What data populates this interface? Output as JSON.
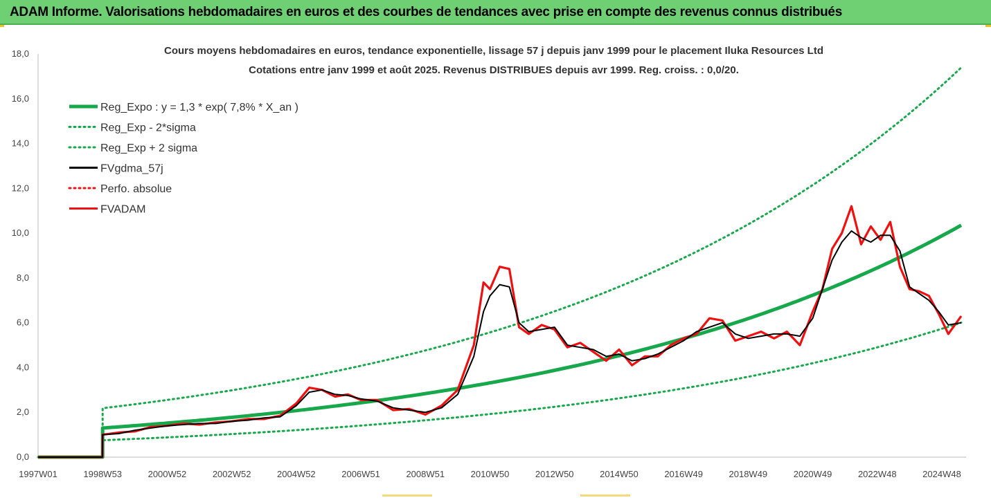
{
  "header": {
    "title": "ADAM Informe. Valorisations hebdomadaires en euros et des courbes de tendances avec prise en compte des revenus connus distribués"
  },
  "colors": {
    "header_bg": "#6fcf73",
    "trend_green": "#16a84a",
    "price_red": "#ee1111",
    "avg_black": "#000000"
  },
  "chart_data": {
    "type": "line",
    "title": "Cours moyens hebdomadaires en euros, tendance exponentielle, lissage 57 j depuis janv 1999 pour le placement Iluka Resources Ltd",
    "subtitle": "Cotations entre janv 1999 et août 2025. Revenus DISTRIBUES depuis avr 1999. Reg. croiss. : 0,0/20.",
    "xlabel": "",
    "ylabel": "",
    "ylim": [
      0,
      18
    ],
    "y_ticks": [
      "0,0",
      "2,0",
      "4,0",
      "6,0",
      "8,0",
      "10,0",
      "12,0",
      "14,0",
      "16,0",
      "18,0"
    ],
    "x_ticks": [
      "1997W01",
      "1998W53",
      "2000W52",
      "2002W52",
      "2004W52",
      "2006W51",
      "2008W51",
      "2010W50",
      "2012W50",
      "2014W50",
      "2016W49",
      "2018W49",
      "2020W49",
      "2022W48",
      "2024W48"
    ],
    "grid": false,
    "legend_position": "top-left",
    "series": [
      {
        "name": "Reg_Expo : y = 1,3 * exp( 7,8% *  X_an )",
        "style": "solid",
        "color": "#16a84a",
        "x": [
          1999,
          2025.6
        ],
        "formula": {
          "a": 1.3,
          "rate": 0.078,
          "start": 1999,
          "factor": 1
        }
      },
      {
        "name": "Reg_Exp - 2*sigma",
        "style": "dotted",
        "color": "#16a84a",
        "x": [
          1999,
          2025.6
        ],
        "formula": {
          "a": 1.3,
          "rate": 0.078,
          "start": 1999,
          "factor": 0.58
        }
      },
      {
        "name": "Reg_Exp + 2 sigma",
        "style": "dotted",
        "color": "#16a84a",
        "x": [
          1999,
          2025.6
        ],
        "formula": {
          "a": 1.3,
          "rate": 0.078,
          "start": 1999,
          "factor": 1.68
        }
      },
      {
        "name": "FVgdma_57j",
        "style": "solid",
        "color": "#000000",
        "x": [
          1997.0,
          1998.99,
          1999.0,
          1999.5,
          2000.0,
          2000.5,
          2001.0,
          2001.5,
          2002.0,
          2002.5,
          2003.0,
          2003.5,
          2004.0,
          2004.5,
          2005.0,
          2005.4,
          2005.8,
          2006.2,
          2006.6,
          2007.0,
          2007.5,
          2008.0,
          2008.5,
          2009.0,
          2009.5,
          2010.0,
          2010.5,
          2010.8,
          2011.0,
          2011.3,
          2011.6,
          2011.9,
          2012.2,
          2012.6,
          2013.0,
          2013.4,
          2013.8,
          2014.2,
          2014.6,
          2015.0,
          2015.4,
          2015.8,
          2016.2,
          2016.6,
          2017.0,
          2017.4,
          2017.8,
          2018.2,
          2018.6,
          2019.0,
          2019.4,
          2019.8,
          2020.2,
          2020.6,
          2021.0,
          2021.3,
          2021.6,
          2021.9,
          2022.2,
          2022.5,
          2022.8,
          2023.1,
          2023.4,
          2023.7,
          2024.0,
          2024.3,
          2024.6,
          2024.9,
          2025.2,
          2025.6
        ],
        "y": [
          0,
          0,
          1.0,
          1.05,
          1.2,
          1.3,
          1.4,
          1.45,
          1.5,
          1.5,
          1.6,
          1.65,
          1.75,
          1.8,
          2.3,
          2.9,
          3.0,
          2.8,
          2.75,
          2.6,
          2.5,
          2.2,
          2.1,
          2.0,
          2.2,
          2.8,
          4.5,
          6.5,
          7.2,
          7.7,
          7.6,
          6.0,
          5.6,
          5.7,
          5.8,
          5.0,
          4.9,
          4.8,
          4.5,
          4.6,
          4.3,
          4.4,
          4.6,
          4.9,
          5.2,
          5.6,
          5.8,
          6.0,
          5.5,
          5.3,
          5.4,
          5.5,
          5.5,
          5.4,
          6.2,
          7.5,
          8.8,
          9.6,
          10.1,
          9.8,
          9.6,
          9.9,
          9.9,
          9.2,
          7.6,
          7.3,
          7.0,
          6.5,
          5.9,
          6.0
        ]
      },
      {
        "name": "Perfo. absolue",
        "style": "dotted",
        "color": "#ee1111",
        "x": [],
        "y": []
      },
      {
        "name": "FVADAM",
        "style": "solid",
        "color": "#ee1111",
        "x": [
          1997.0,
          1998.99,
          1999.0,
          1999.5,
          2000.0,
          2000.5,
          2001.0,
          2001.5,
          2002.0,
          2002.5,
          2003.0,
          2003.5,
          2004.0,
          2004.5,
          2005.0,
          2005.4,
          2005.8,
          2006.2,
          2006.6,
          2007.0,
          2007.5,
          2008.0,
          2008.5,
          2009.0,
          2009.5,
          2010.0,
          2010.5,
          2010.8,
          2011.0,
          2011.3,
          2011.6,
          2011.9,
          2012.2,
          2012.6,
          2013.0,
          2013.4,
          2013.8,
          2014.2,
          2014.6,
          2015.0,
          2015.4,
          2015.8,
          2016.2,
          2016.6,
          2017.0,
          2017.4,
          2017.8,
          2018.2,
          2018.6,
          2019.0,
          2019.4,
          2019.8,
          2020.2,
          2020.6,
          2021.0,
          2021.3,
          2021.6,
          2021.9,
          2022.2,
          2022.5,
          2022.8,
          2023.1,
          2023.4,
          2023.7,
          2024.0,
          2024.3,
          2024.6,
          2024.9,
          2025.2,
          2025.6
        ],
        "y": [
          0,
          0,
          1.0,
          1.1,
          1.15,
          1.35,
          1.4,
          1.5,
          1.45,
          1.55,
          1.6,
          1.7,
          1.7,
          1.85,
          2.4,
          3.1,
          3.0,
          2.7,
          2.8,
          2.55,
          2.55,
          2.1,
          2.15,
          1.9,
          2.3,
          3.0,
          5.0,
          7.8,
          7.5,
          8.5,
          8.4,
          5.8,
          5.5,
          5.9,
          5.7,
          4.9,
          5.1,
          4.7,
          4.3,
          4.8,
          4.1,
          4.5,
          4.5,
          5.0,
          5.3,
          5.5,
          6.2,
          6.1,
          5.2,
          5.4,
          5.6,
          5.3,
          5.6,
          5.0,
          6.5,
          7.5,
          9.3,
          10.0,
          11.2,
          9.5,
          10.3,
          9.7,
          10.5,
          8.5,
          7.5,
          7.4,
          7.2,
          6.4,
          5.5,
          6.3
        ]
      }
    ]
  }
}
